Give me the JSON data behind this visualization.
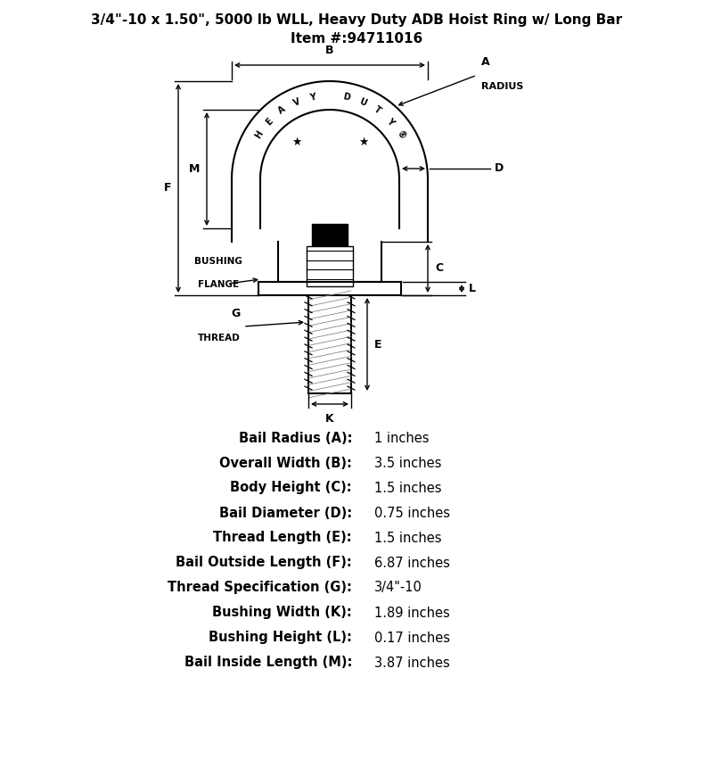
{
  "title_line1": "3/4\"-10 x 1.50\", 5000 lb WLL, Heavy Duty ADB Hoist Ring w/ Long Bar",
  "title_line2": "Item #:94711016",
  "specs": [
    {
      "label": "Bail Radius (A):",
      "value": "1 inches"
    },
    {
      "label": "Overall Width (B):",
      "value": "3.5 inches"
    },
    {
      "label": "Body Height (C):",
      "value": "1.5 inches"
    },
    {
      "label": "Bail Diameter (D):",
      "value": "0.75 inches"
    },
    {
      "label": "Thread Length (E):",
      "value": "1.5 inches"
    },
    {
      "label": "Bail Outside Length (F):",
      "value": "6.87 inches"
    },
    {
      "label": "Thread Specification (G):",
      "value": "3/4\"-10"
    },
    {
      "label": "Bushing Width (K):",
      "value": "1.89 inches"
    },
    {
      "label": "Bushing Height (L):",
      "value": "0.17 inches"
    },
    {
      "label": "Bail Inside Length (M):",
      "value": "3.87 inches"
    }
  ],
  "bg_color": "#ffffff",
  "line_color": "#000000"
}
